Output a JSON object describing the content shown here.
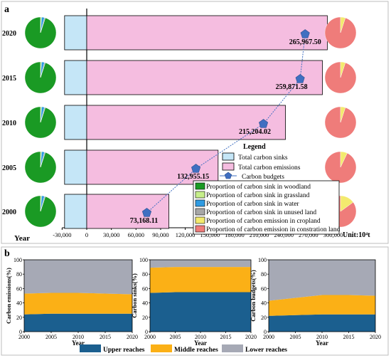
{
  "panel_a": {
    "label": "a",
    "y_axis_label": "Year",
    "unit": "Unit:10⁴t",
    "legend": {
      "title": "Legend",
      "items": [
        "Total carbon sinks",
        "Total carbon emissions",
        "Carbon budgets",
        "Proportion of carbon sink in woodland",
        "Proportion of carbon sink in grassland",
        "Proportion of carbon sink in water",
        "Proportion of carbon sink in unused land",
        "Proportion of carbon emission in cropland",
        "Proportion of carbon emission in constration land"
      ]
    },
    "colors": {
      "sinks": "#c5e6f7",
      "emissions": "#f5bde0",
      "budget": "#3f6fc1",
      "woodland": "#1a9a24",
      "grassland": "#c6ee8a",
      "water": "#2f9be2",
      "unused": "#a7a7a7",
      "cropland": "#f3ea6e",
      "construction": "#ef7c7a"
    },
    "x_ticks": [
      "-30,000",
      "0",
      "30,000",
      "60,000",
      "90,000",
      "120,000",
      "150,000",
      "180,000",
      "210,000",
      "240,000",
      "270,000",
      "300,000"
    ],
    "budget_labels": [
      "73,168.11",
      "132,955.15",
      "215,204.02",
      "259,871.58",
      "265,967.50"
    ]
  },
  "panel_b": {
    "label": "b",
    "x_label": "Year",
    "legend": [
      "Upper reaches",
      "Middle reaches",
      "Lower reaches"
    ],
    "colors": {
      "upper": "#1b5f8f",
      "middle": "#fbb016",
      "lower": "#a6a9b5"
    },
    "charts": [
      {
        "ylabel": "Carbon emissions(%)"
      },
      {
        "ylabel": "Carbon sinks(%)"
      },
      {
        "ylabel": "Carbon budgets(%)"
      }
    ]
  },
  "chart_data": [
    {
      "type": "bar",
      "orientation": "horizontal",
      "categories": [
        "2000",
        "2005",
        "2010",
        "2015",
        "2020"
      ],
      "xlim": [
        -30000,
        300000
      ],
      "series": [
        {
          "name": "Total carbon sinks",
          "values": [
            -27000,
            -27000,
            -27000,
            -27000,
            -27000
          ]
        },
        {
          "name": "Total carbon emissions",
          "values": [
            100000,
            160000,
            242000,
            287000,
            293000
          ]
        },
        {
          "name": "Carbon budgets",
          "values": [
            73168.11,
            132955.15,
            215204.02,
            259871.58,
            265967.5
          ]
        }
      ],
      "pies_sink": [
        {
          "year": "2000",
          "woodland": 0.95,
          "grassland": 0.01,
          "water": 0.03,
          "unused": 0.01
        },
        {
          "year": "2005",
          "woodland": 0.95,
          "grassland": 0.01,
          "water": 0.03,
          "unused": 0.01
        },
        {
          "year": "2010",
          "woodland": 0.95,
          "grassland": 0.01,
          "water": 0.03,
          "unused": 0.01
        },
        {
          "year": "2015",
          "woodland": 0.95,
          "grassland": 0.01,
          "water": 0.03,
          "unused": 0.01
        },
        {
          "year": "2020",
          "woodland": 0.95,
          "grassland": 0.01,
          "water": 0.03,
          "unused": 0.01
        }
      ],
      "pies_emission": [
        {
          "year": "2000",
          "cropland": 0.15,
          "construction": 0.85
        },
        {
          "year": "2005",
          "cropland": 0.07,
          "construction": 0.93
        },
        {
          "year": "2010",
          "cropland": 0.05,
          "construction": 0.95
        },
        {
          "year": "2015",
          "cropland": 0.05,
          "construction": 0.95
        },
        {
          "year": "2020",
          "cropland": 0.05,
          "construction": 0.95
        }
      ]
    },
    {
      "type": "area",
      "ylabel": "Carbon emissions(%)",
      "x": [
        2000,
        2005,
        2010,
        2015,
        2020
      ],
      "ylim": [
        0,
        100
      ],
      "x_ticks": [
        2000,
        2005,
        2010,
        2015,
        2020
      ],
      "y_ticks": [
        0,
        20,
        40,
        60,
        80,
        100
      ],
      "series": [
        {
          "name": "Upper reaches",
          "values": [
            24,
            25,
            25,
            25,
            25
          ]
        },
        {
          "name": "Middle reaches",
          "values": [
            29,
            29,
            29,
            28,
            27
          ]
        },
        {
          "name": "Lower reaches",
          "values": [
            47,
            46,
            46,
            47,
            48
          ]
        }
      ]
    },
    {
      "type": "area",
      "ylabel": "Carbon sinks(%)",
      "x": [
        2000,
        2005,
        2010,
        2015,
        2020
      ],
      "ylim": [
        0,
        100
      ],
      "x_ticks": [
        2000,
        2005,
        2010,
        2015,
        2020
      ],
      "y_ticks": [
        0,
        20,
        40,
        60,
        80,
        100
      ],
      "series": [
        {
          "name": "Upper reaches",
          "values": [
            54,
            55,
            55,
            55,
            55
          ]
        },
        {
          "name": "Middle reaches",
          "values": [
            35,
            35,
            35,
            35,
            35
          ]
        },
        {
          "name": "Lower reaches",
          "values": [
            11,
            10,
            10,
            10,
            10
          ]
        }
      ]
    },
    {
      "type": "area",
      "ylabel": "Carbon budgets(%)",
      "x": [
        2000,
        2005,
        2010,
        2015,
        2020
      ],
      "ylim": [
        0,
        100
      ],
      "x_ticks": [
        2000,
        2005,
        2010,
        2015,
        2020
      ],
      "y_ticks": [
        0,
        20,
        40,
        60,
        80,
        100
      ],
      "series": [
        {
          "name": "Upper reaches",
          "values": [
            22,
            23,
            24,
            24,
            24
          ]
        },
        {
          "name": "Middle reaches",
          "values": [
            21,
            24,
            27,
            27,
            26
          ]
        },
        {
          "name": "Lower reaches",
          "values": [
            57,
            53,
            49,
            49,
            50
          ]
        }
      ]
    }
  ]
}
